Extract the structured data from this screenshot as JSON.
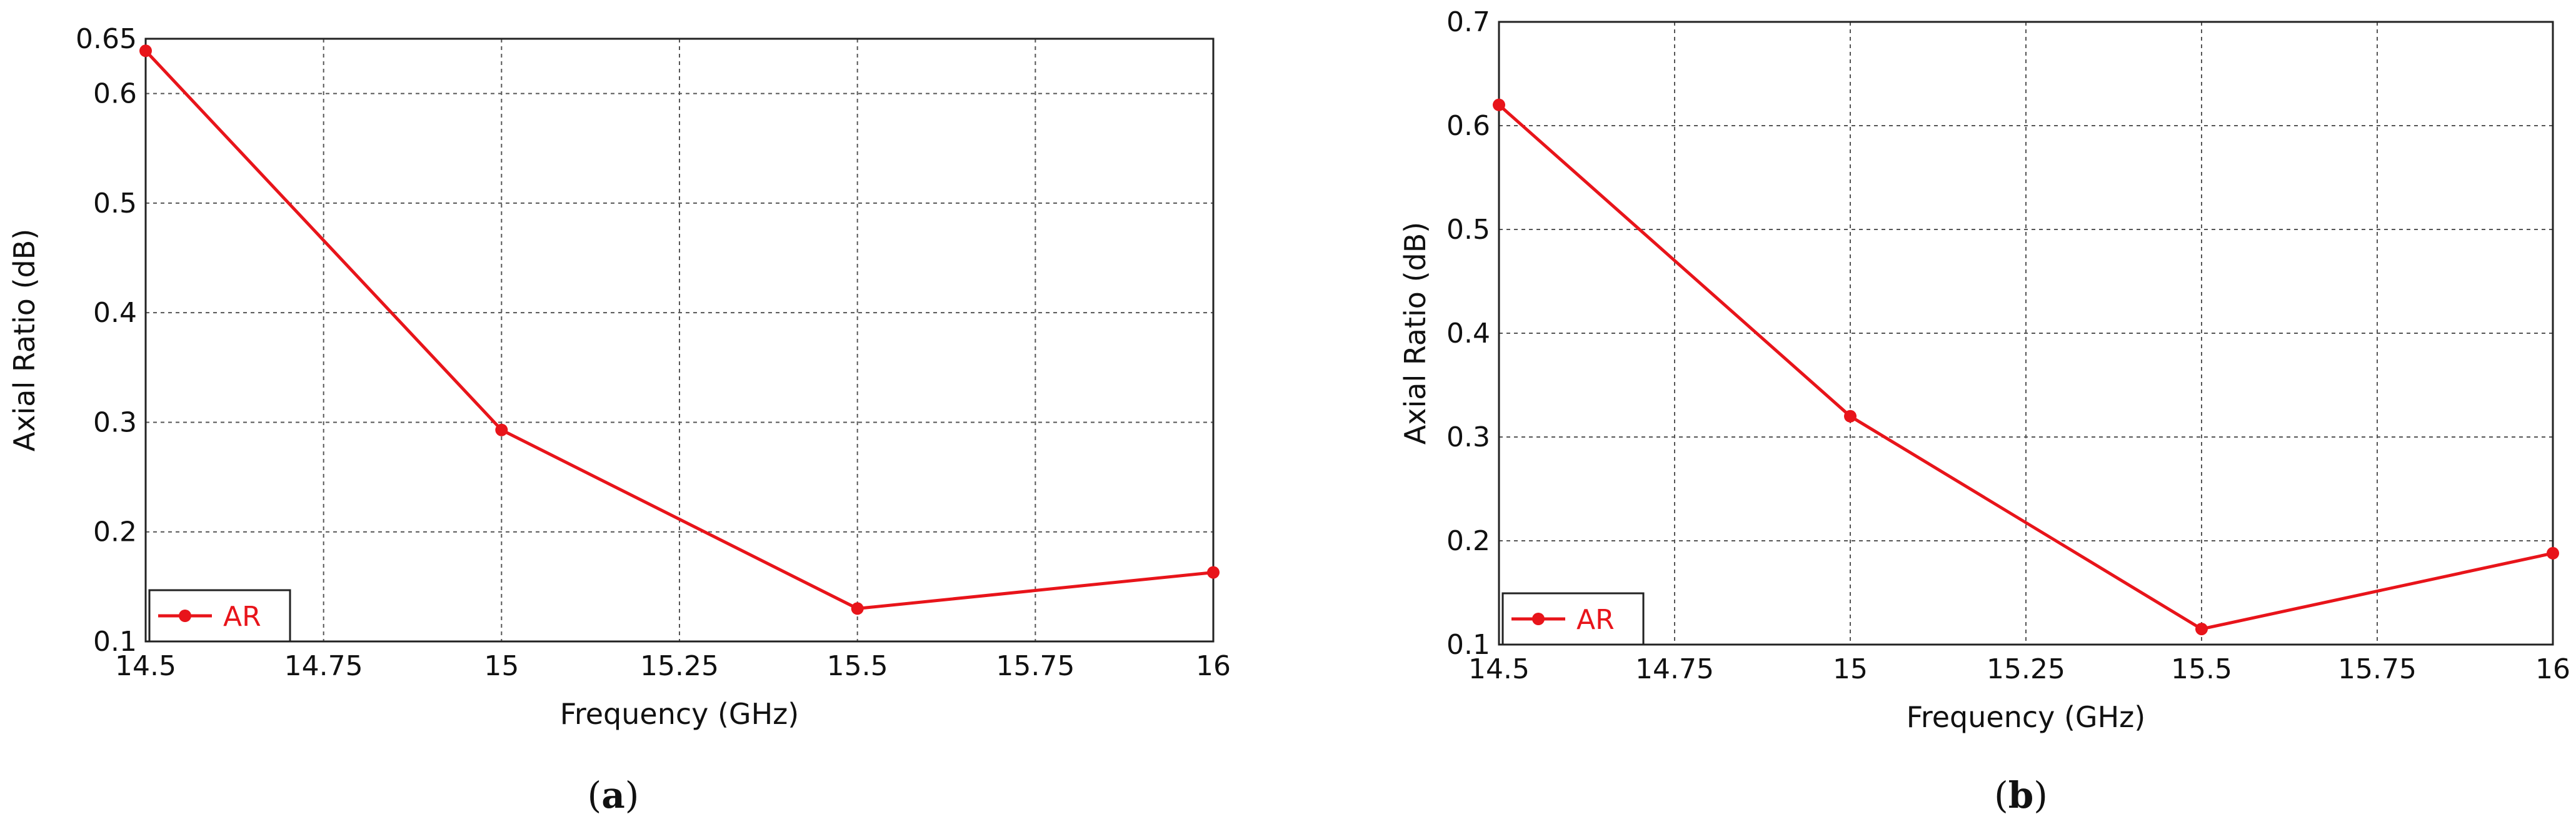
{
  "chart_data": [
    {
      "type": "line",
      "x": [
        14.5,
        15,
        15.5,
        16
      ],
      "series": [
        {
          "name": "AR",
          "values": [
            0.639,
            0.293,
            0.13,
            0.163
          ]
        }
      ],
      "xlabel": "Frequency (GHz)",
      "ylabel": "Axial Ratio (dB)",
      "xlim": [
        14.5,
        16
      ],
      "ylim": [
        0.1,
        0.65
      ],
      "xticks": [
        "14.5",
        "14.75",
        "15",
        "15.25",
        "15.5",
        "15.75",
        "16"
      ],
      "yticks": [
        "0.1",
        "0.2",
        "0.3",
        "0.4",
        "0.5",
        "0.6",
        "0.65"
      ],
      "grid": true,
      "legend": "bottom-left",
      "color": "#e8141a",
      "caption_letter": "a"
    },
    {
      "type": "line",
      "x": [
        14.5,
        15,
        15.5,
        16
      ],
      "series": [
        {
          "name": "AR",
          "values": [
            0.62,
            0.32,
            0.115,
            0.188
          ]
        }
      ],
      "xlabel": "Frequency (GHz)",
      "ylabel": "Axial Ratio (dB)",
      "xlim": [
        14.5,
        16
      ],
      "ylim": [
        0.1,
        0.7
      ],
      "xticks": [
        "14.5",
        "14.75",
        "15",
        "15.25",
        "15.5",
        "15.75",
        "16"
      ],
      "yticks": [
        "0.1",
        "0.2",
        "0.3",
        "0.4",
        "0.5",
        "0.6",
        "0.7"
      ],
      "grid": true,
      "legend": "bottom-left",
      "color": "#e8141a",
      "caption_letter": "b"
    }
  ]
}
